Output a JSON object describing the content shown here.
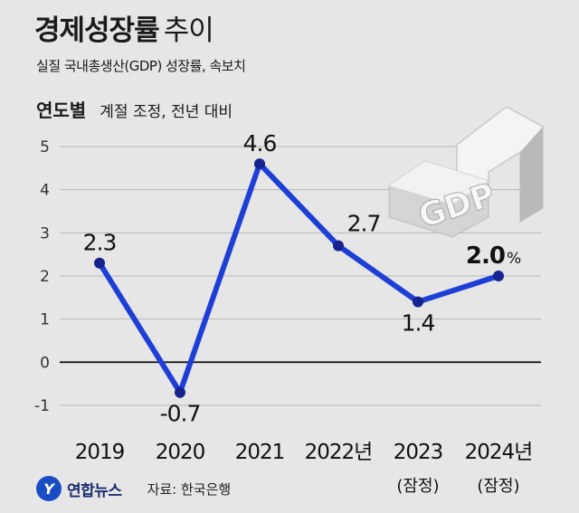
{
  "header": {
    "title_bold": "경제성장률",
    "title_light": "추이",
    "subtitle": "실질 국내총생산(GDP) 성장률, 속보치"
  },
  "section": {
    "label": "연도별",
    "note": "계절 조정, 전년 대비"
  },
  "chart_data": {
    "type": "line",
    "x": [
      "2019",
      "2020",
      "2021",
      "2022",
      "2023",
      "2024"
    ],
    "x_tick_labels": [
      "2019",
      "2020",
      "2021",
      "2022년",
      "2023",
      "2024년"
    ],
    "x_sublabels": [
      "",
      "",
      "",
      "",
      "(잠정)",
      "(잠정)"
    ],
    "series": [
      {
        "values": [
          2.3,
          -0.7,
          4.6,
          2.7,
          1.4,
          2.0
        ]
      }
    ],
    "value_labels": [
      "2.3",
      "-0.7",
      "4.6",
      "2.7",
      "1.4",
      "2.0"
    ],
    "highlight_suffix": "%",
    "y_ticks": [
      "5",
      "4",
      "3",
      "2",
      "1",
      "0",
      "-1"
    ],
    "ylim": [
      -1,
      5
    ],
    "grid": true,
    "colors": {
      "line": "#1e3fd6",
      "marker": "#16238f",
      "grid": "#b8b8b8",
      "zero_line": "#000000"
    },
    "decoration_text": "GDP"
  },
  "footer": {
    "logo_text": "연합뉴스",
    "source": "자료: 한국은행"
  }
}
